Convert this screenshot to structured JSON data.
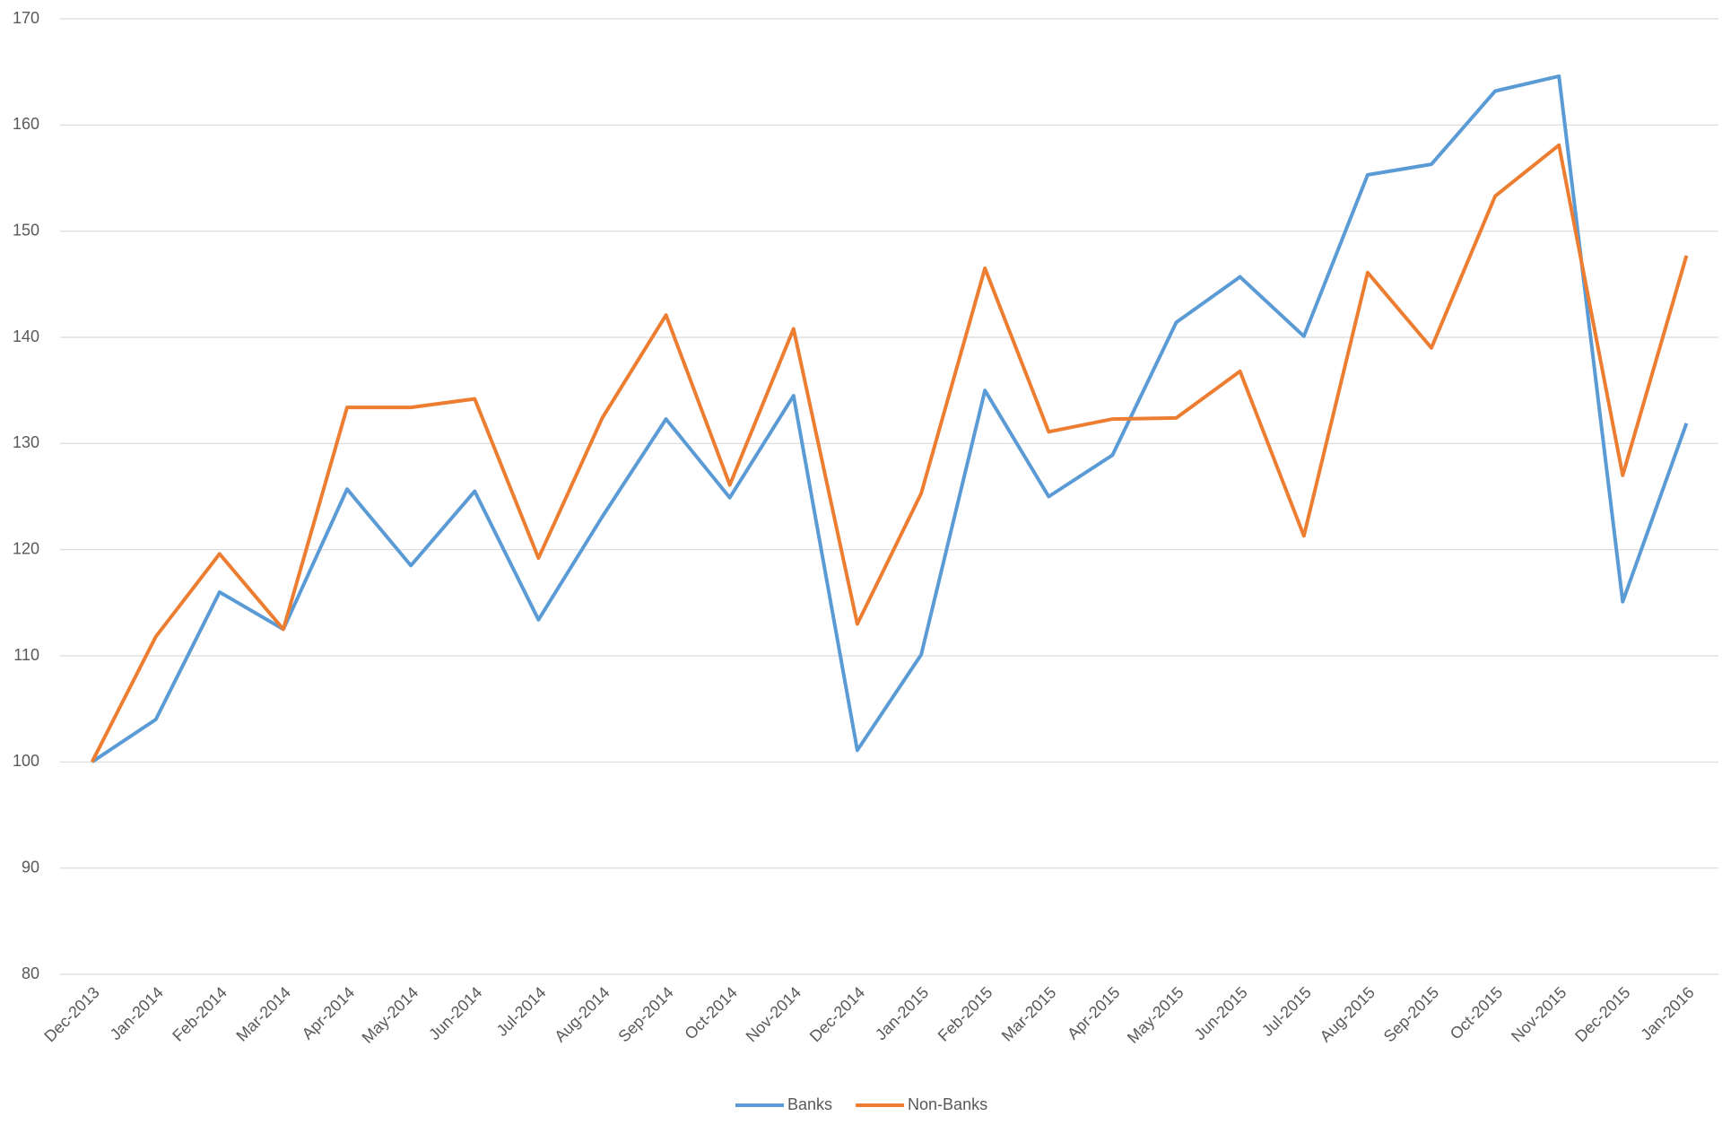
{
  "chart_data": {
    "type": "line",
    "categories": [
      "Dec-2013",
      "Jan-2014",
      "Feb-2014",
      "Mar-2014",
      "Apr-2014",
      "May-2014",
      "Jun-2014",
      "Jul-2014",
      "Aug-2014",
      "Sep-2014",
      "Oct-2014",
      "Nov-2014",
      "Dec-2014",
      "Jan-2015",
      "Feb-2015",
      "Mar-2015",
      "Apr-2015",
      "May-2015",
      "Jun-2015",
      "Jul-2015",
      "Aug-2015",
      "Sep-2015",
      "Oct-2015",
      "Nov-2015",
      "Dec-2015",
      "Jan-2016"
    ],
    "series": [
      {
        "name": "Banks",
        "color": "#5b9bd5",
        "values": [
          100,
          104,
          116,
          112.5,
          125.7,
          118.5,
          125.5,
          113.4,
          123.1,
          132.3,
          124.9,
          134.5,
          101.1,
          110.1,
          135,
          125,
          128.9,
          141.4,
          145.7,
          140.1,
          155.3,
          156.3,
          163.2,
          164.6,
          115.1,
          131.9
        ]
      },
      {
        "name": "Non-Banks",
        "color": "#ed7d31",
        "values": [
          100,
          111.8,
          119.6,
          112.5,
          133.4,
          133.4,
          134.2,
          119.2,
          132.4,
          142.1,
          126.1,
          140.8,
          113,
          125.3,
          146.5,
          131.1,
          132.3,
          132.4,
          136.8,
          121.3,
          146.1,
          139,
          153.3,
          158.1,
          127,
          147.7
        ]
      }
    ],
    "ylim": [
      80,
      170
    ],
    "yticks": [
      80,
      90,
      100,
      110,
      120,
      130,
      140,
      150,
      160,
      170
    ],
    "grid": true,
    "legend": "bottom"
  }
}
